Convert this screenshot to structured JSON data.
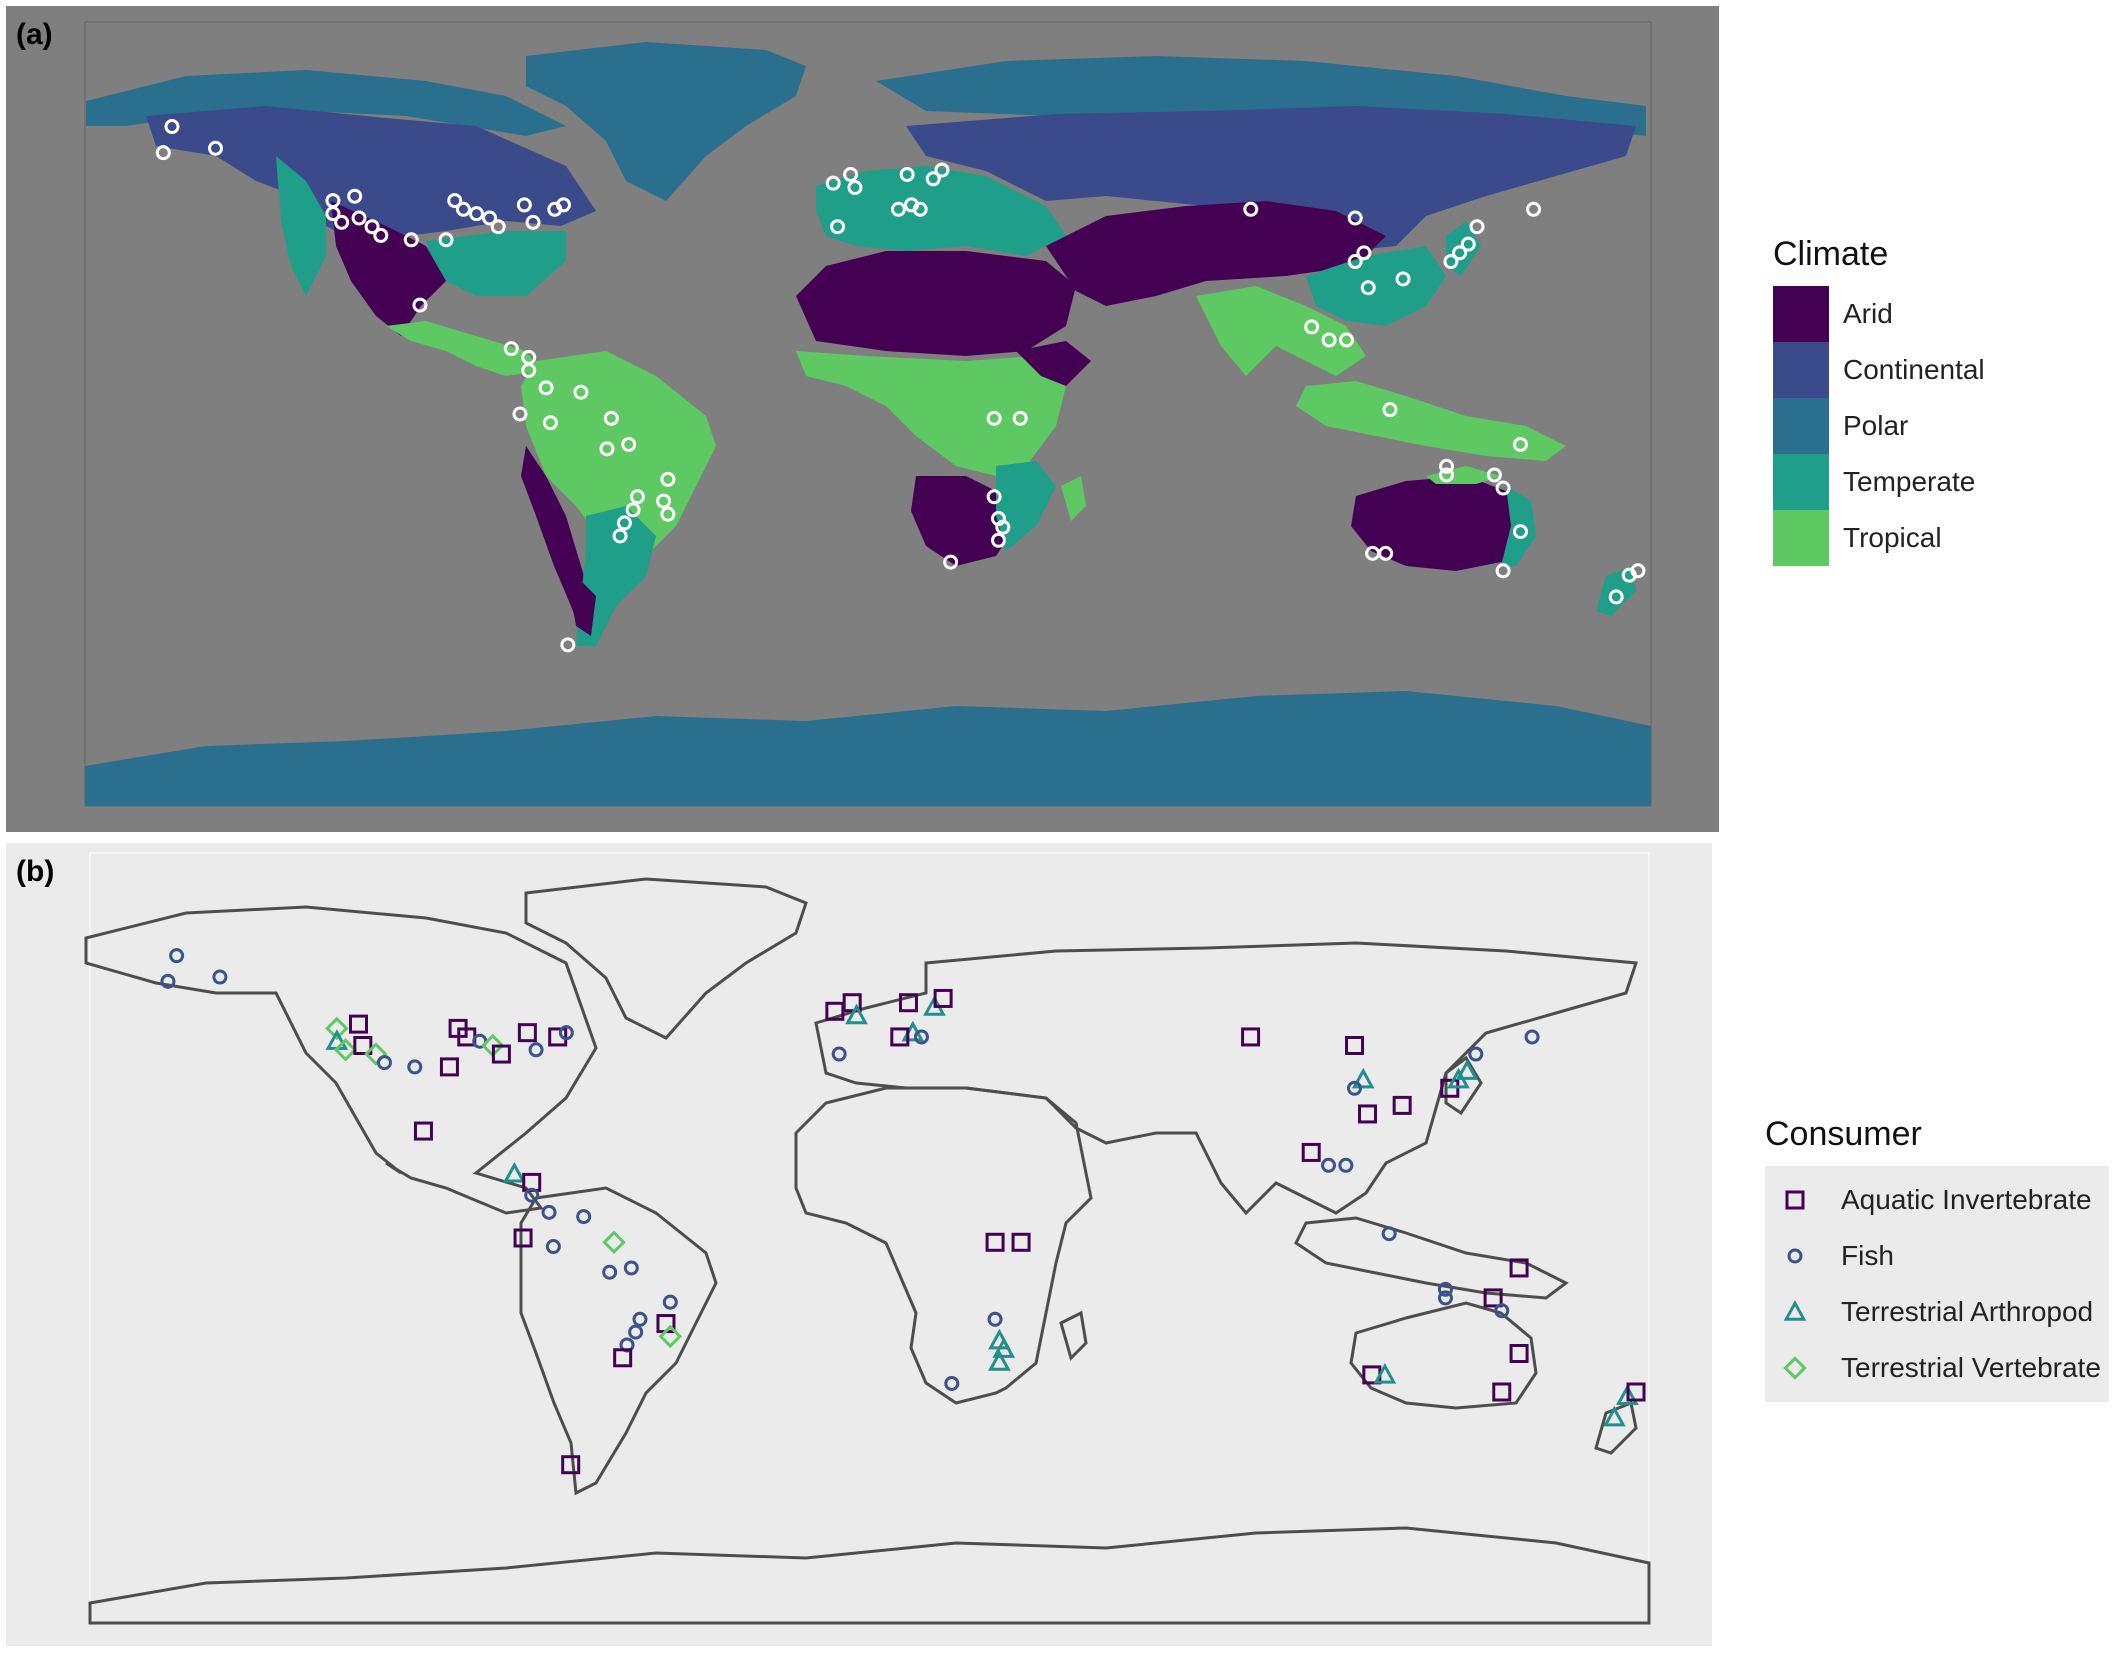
{
  "panels": {
    "a": {
      "label": "(a)",
      "legend_title": "Climate",
      "background_color": "#7f7f7f",
      "climate_classes": [
        {
          "label": "Arid",
          "color": "#440154"
        },
        {
          "label": "Continental",
          "color": "#3b4a8a"
        },
        {
          "label": "Polar",
          "color": "#2a6f8e"
        },
        {
          "label": "Temperate",
          "color": "#1f9e89"
        },
        {
          "label": "Tropical",
          "color": "#5ec962"
        }
      ],
      "site_marker_color": "#ffffff"
    },
    "b": {
      "label": "(b)",
      "legend_title": "Consumer",
      "background_color": "#ebebeb",
      "outline_color": "#4d4d4d",
      "consumer_types": [
        {
          "label": "Aquatic Invertebrate",
          "shape": "square",
          "color": "#440154"
        },
        {
          "label": "Fish",
          "shape": "circle",
          "color": "#3b528b"
        },
        {
          "label": "Terrestrial Arthropod",
          "shape": "triangle",
          "color": "#21908c"
        },
        {
          "label": "Terrestrial Vertebrate",
          "shape": "diamond",
          "color": "#5ec962"
        }
      ]
    }
  },
  "sites": [
    {
      "lon": -160,
      "lat": 66,
      "type": "Fish"
    },
    {
      "lon": -162,
      "lat": 60,
      "type": "Fish"
    },
    {
      "lon": -150,
      "lat": 61,
      "type": "Fish"
    },
    {
      "lon": -123,
      "lat": 49,
      "type": "Terrestrial Vertebrate"
    },
    {
      "lon": -123,
      "lat": 46,
      "type": "Terrestrial Arthropod"
    },
    {
      "lon": -121,
      "lat": 44,
      "type": "Terrestrial Vertebrate"
    },
    {
      "lon": -118,
      "lat": 50,
      "type": "Aquatic Invertebrate"
    },
    {
      "lon": -117,
      "lat": 45,
      "type": "Aquatic Invertebrate"
    },
    {
      "lon": -114,
      "lat": 43,
      "type": "Terrestrial Vertebrate"
    },
    {
      "lon": -112,
      "lat": 41,
      "type": "Fish"
    },
    {
      "lon": -105,
      "lat": 40,
      "type": "Fish"
    },
    {
      "lon": -97,
      "lat": 40,
      "type": "Aquatic Invertebrate"
    },
    {
      "lon": -95,
      "lat": 49,
      "type": "Aquatic Invertebrate"
    },
    {
      "lon": -93,
      "lat": 47,
      "type": "Aquatic Invertebrate"
    },
    {
      "lon": -90,
      "lat": 46,
      "type": "Fish"
    },
    {
      "lon": -87,
      "lat": 45,
      "type": "Terrestrial Vertebrate"
    },
    {
      "lon": -85,
      "lat": 43,
      "type": "Aquatic Invertebrate"
    },
    {
      "lon": -79,
      "lat": 48,
      "type": "Aquatic Invertebrate"
    },
    {
      "lon": -77,
      "lat": 44,
      "type": "Fish"
    },
    {
      "lon": -72,
      "lat": 47,
      "type": "Aquatic Invertebrate"
    },
    {
      "lon": -70,
      "lat": 48,
      "type": "Fish"
    },
    {
      "lon": -103,
      "lat": 25,
      "type": "Aquatic Invertebrate"
    },
    {
      "lon": -82,
      "lat": 15,
      "type": "Terrestrial Arthropod"
    },
    {
      "lon": -78,
      "lat": 13,
      "type": "Aquatic Invertebrate"
    },
    {
      "lon": -78,
      "lat": 10,
      "type": "Fish"
    },
    {
      "lon": -74,
      "lat": 6,
      "type": "Fish"
    },
    {
      "lon": -66,
      "lat": 5,
      "type": "Fish"
    },
    {
      "lon": -80,
      "lat": 0,
      "type": "Aquatic Invertebrate"
    },
    {
      "lon": -73,
      "lat": -2,
      "type": "Fish"
    },
    {
      "lon": -59,
      "lat": -1,
      "type": "Terrestrial Vertebrate"
    },
    {
      "lon": -60,
      "lat": -8,
      "type": "Fish"
    },
    {
      "lon": -55,
      "lat": -7,
      "type": "Fish"
    },
    {
      "lon": -46,
      "lat": -15,
      "type": "Fish"
    },
    {
      "lon": -53,
      "lat": -19,
      "type": "Fish"
    },
    {
      "lon": -47,
      "lat": -20,
      "type": "Aquatic Invertebrate"
    },
    {
      "lon": -54,
      "lat": -22,
      "type": "Fish"
    },
    {
      "lon": -46,
      "lat": -23,
      "type": "Terrestrial Vertebrate"
    },
    {
      "lon": -56,
      "lat": -25,
      "type": "Fish"
    },
    {
      "lon": -57,
      "lat": -28,
      "type": "Aquatic Invertebrate"
    },
    {
      "lon": -69,
      "lat": -53,
      "type": "Aquatic Invertebrate"
    },
    {
      "lon": -8,
      "lat": 53,
      "type": "Aquatic Invertebrate"
    },
    {
      "lon": -4,
      "lat": 55,
      "type": "Aquatic Invertebrate"
    },
    {
      "lon": -3,
      "lat": 52,
      "type": "Terrestrial Arthropod"
    },
    {
      "lon": -7,
      "lat": 43,
      "type": "Fish"
    },
    {
      "lon": 9,
      "lat": 55,
      "type": "Aquatic Invertebrate"
    },
    {
      "lon": 10,
      "lat": 48,
      "type": "Terrestrial Arthropod"
    },
    {
      "lon": 12,
      "lat": 47,
      "type": "Fish"
    },
    {
      "lon": 15,
      "lat": 54,
      "type": "Terrestrial Arthropod"
    },
    {
      "lon": 17,
      "lat": 56,
      "type": "Aquatic Invertebrate"
    },
    {
      "lon": 7,
      "lat": 47,
      "type": "Aquatic Invertebrate"
    },
    {
      "lon": 88,
      "lat": 47,
      "type": "Aquatic Invertebrate"
    },
    {
      "lon": 112,
      "lat": 45,
      "type": "Aquatic Invertebrate"
    },
    {
      "lon": 114,
      "lat": 37,
      "type": "Terrestrial Arthropod"
    },
    {
      "lon": 112,
      "lat": 35,
      "type": "Fish"
    },
    {
      "lon": 115,
      "lat": 29,
      "type": "Aquatic Invertebrate"
    },
    {
      "lon": 123,
      "lat": 31,
      "type": "Aquatic Invertebrate"
    },
    {
      "lon": 102,
      "lat": 20,
      "type": "Aquatic Invertebrate"
    },
    {
      "lon": 106,
      "lat": 17,
      "type": "Fish"
    },
    {
      "lon": 110,
      "lat": 17,
      "type": "Fish"
    },
    {
      "lon": 134,
      "lat": 35,
      "type": "Aquatic Invertebrate"
    },
    {
      "lon": 136,
      "lat": 37,
      "type": "Terrestrial Arthropod"
    },
    {
      "lon": 138,
      "lat": 39,
      "type": "Terrestrial Arthropod"
    },
    {
      "lon": 140,
      "lat": 43,
      "type": "Fish"
    },
    {
      "lon": 153,
      "lat": 47,
      "type": "Fish"
    },
    {
      "lon": 120,
      "lat": 1,
      "type": "Fish"
    },
    {
      "lon": 150,
      "lat": -7,
      "type": "Aquatic Invertebrate"
    },
    {
      "lon": 29,
      "lat": -1,
      "type": "Aquatic Invertebrate"
    },
    {
      "lon": 35,
      "lat": -1,
      "type": "Aquatic Invertebrate"
    },
    {
      "lon": 29,
      "lat": -19,
      "type": "Fish"
    },
    {
      "lon": 30,
      "lat": -24,
      "type": "Terrestrial Arthropod"
    },
    {
      "lon": 31,
      "lat": -26,
      "type": "Terrestrial Arthropod"
    },
    {
      "lon": 30,
      "lat": -29,
      "type": "Terrestrial Arthropod"
    },
    {
      "lon": 19,
      "lat": -34,
      "type": "Fish"
    },
    {
      "lon": 116,
      "lat": -32,
      "type": "Aquatic Invertebrate"
    },
    {
      "lon": 119,
      "lat": -32,
      "type": "Terrestrial Arthropod"
    },
    {
      "lon": 133,
      "lat": -12,
      "type": "Fish"
    },
    {
      "lon": 133,
      "lat": -14,
      "type": "Fish"
    },
    {
      "lon": 144,
      "lat": -14,
      "type": "Aquatic Invertebrate"
    },
    {
      "lon": 146,
      "lat": -17,
      "type": "Fish"
    },
    {
      "lon": 150,
      "lat": -27,
      "type": "Aquatic Invertebrate"
    },
    {
      "lon": 146,
      "lat": -36,
      "type": "Aquatic Invertebrate"
    },
    {
      "lon": 175,
      "lat": -37,
      "type": "Terrestrial Arthropod"
    },
    {
      "lon": 177,
      "lat": -36,
      "type": "Aquatic Invertebrate"
    },
    {
      "lon": 172,
      "lat": -42,
      "type": "Terrestrial Arthropod"
    }
  ]
}
